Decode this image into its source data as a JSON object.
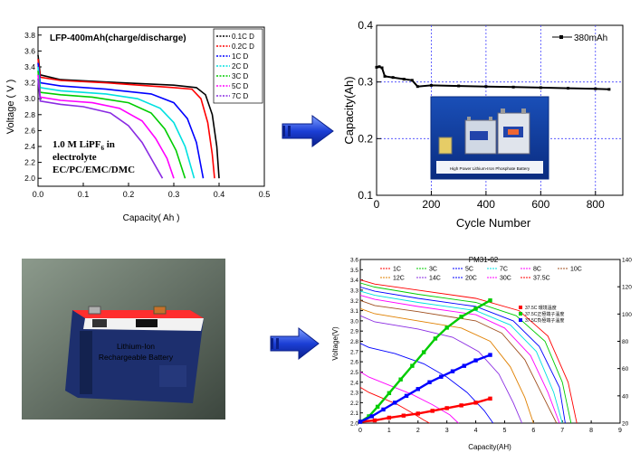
{
  "colors": {
    "black": "#000000",
    "red": "#ff0000",
    "blue": "#0000ff",
    "cyan": "#00e0e0",
    "green": "#00cc00",
    "magenta": "#ff00ff",
    "purple": "#8a2be2",
    "orange": "#e08000",
    "brown": "#a05020",
    "arrow": "#1c3fd6"
  },
  "icons": {
    "arrow_top": "right-arrow-icon",
    "arrow_bottom": "right-arrow-icon"
  },
  "photos": {
    "battery_label_1": "Lithium-Ion",
    "battery_label_2": "Rechargeable Battery",
    "inset_caption": "High Power Lithium-Iron Phosphate Battery"
  },
  "chart_data": [
    {
      "type": "line",
      "title": "LFP-400mAh(charge/discharge)",
      "xlabel": "Capacity( Ah )",
      "ylabel": "Voltage ( V )",
      "xlim": [
        0.0,
        0.5
      ],
      "ylim": [
        1.9,
        3.9
      ],
      "xticks": [
        "0.0",
        "0.1",
        "0.2",
        "0.3",
        "0.4",
        "0.5"
      ],
      "yticks": [
        "2.0",
        "2.2",
        "2.4",
        "2.6",
        "2.8",
        "3.0",
        "3.2",
        "3.4",
        "3.6",
        "3.8"
      ],
      "legend_position": "top-right",
      "annotation_lines": [
        "1.0 M LiPF",
        "6",
        " in",
        "electrolyte",
        "EC/PC/EMC/DMC"
      ],
      "series": [
        {
          "name": "0.1C D",
          "color": "black",
          "points": [
            [
              0,
              3.55
            ],
            [
              0.005,
              3.3
            ],
            [
              0.05,
              3.24
            ],
            [
              0.15,
              3.21
            ],
            [
              0.3,
              3.17
            ],
            [
              0.35,
              3.14
            ],
            [
              0.37,
              3.05
            ],
            [
              0.385,
              2.8
            ],
            [
              0.395,
              2.4
            ],
            [
              0.4,
              2.0
            ]
          ]
        },
        {
          "name": "0.2C D",
          "color": "red",
          "points": [
            [
              0,
              3.5
            ],
            [
              0.005,
              3.27
            ],
            [
              0.05,
              3.23
            ],
            [
              0.15,
              3.2
            ],
            [
              0.3,
              3.14
            ],
            [
              0.34,
              3.12
            ],
            [
              0.36,
              3.0
            ],
            [
              0.375,
              2.7
            ],
            [
              0.385,
              2.3
            ],
            [
              0.39,
              2.0
            ]
          ]
        },
        {
          "name": "1C D",
          "color": "blue",
          "points": [
            [
              0,
              3.45
            ],
            [
              0.005,
              3.2
            ],
            [
              0.05,
              3.16
            ],
            [
              0.15,
              3.12
            ],
            [
              0.25,
              3.06
            ],
            [
              0.3,
              2.95
            ],
            [
              0.33,
              2.75
            ],
            [
              0.35,
              2.45
            ],
            [
              0.365,
              2.0
            ]
          ]
        },
        {
          "name": "2C D",
          "color": "cyan",
          "points": [
            [
              0,
              3.4
            ],
            [
              0.005,
              3.14
            ],
            [
              0.05,
              3.1
            ],
            [
              0.15,
              3.06
            ],
            [
              0.22,
              3.0
            ],
            [
              0.27,
              2.88
            ],
            [
              0.3,
              2.7
            ],
            [
              0.325,
              2.4
            ],
            [
              0.345,
              2.0
            ]
          ]
        },
        {
          "name": "3C D",
          "color": "green",
          "points": [
            [
              0,
              3.35
            ],
            [
              0.005,
              3.08
            ],
            [
              0.05,
              3.05
            ],
            [
              0.12,
              3.02
            ],
            [
              0.2,
              2.95
            ],
            [
              0.25,
              2.82
            ],
            [
              0.28,
              2.62
            ],
            [
              0.305,
              2.35
            ],
            [
              0.325,
              2.0
            ]
          ]
        },
        {
          "name": "5C D",
          "color": "magenta",
          "points": [
            [
              0,
              3.3
            ],
            [
              0.005,
              3.02
            ],
            [
              0.05,
              2.98
            ],
            [
              0.12,
              2.95
            ],
            [
              0.18,
              2.88
            ],
            [
              0.23,
              2.72
            ],
            [
              0.26,
              2.5
            ],
            [
              0.285,
              2.25
            ],
            [
              0.3,
              2.0
            ]
          ]
        },
        {
          "name": "7C D",
          "color": "purple",
          "points": [
            [
              0,
              3.25
            ],
            [
              0.005,
              2.97
            ],
            [
              0.05,
              2.93
            ],
            [
              0.1,
              2.9
            ],
            [
              0.16,
              2.82
            ],
            [
              0.2,
              2.66
            ],
            [
              0.23,
              2.45
            ],
            [
              0.255,
              2.2
            ],
            [
              0.275,
              2.0
            ]
          ]
        }
      ]
    },
    {
      "type": "line",
      "title": "",
      "xlabel": "Cycle Number",
      "ylabel": "Capacity(Ah)",
      "xlim": [
        0,
        900
      ],
      "ylim": [
        0.1,
        0.4
      ],
      "xticks": [
        "0",
        "200",
        "400",
        "600",
        "800"
      ],
      "yticks": [
        "0.1",
        "0.2",
        "0.3",
        "0.4"
      ],
      "grid": true,
      "legend_position": "top-right",
      "series": [
        {
          "name": "380mAh",
          "color": "black",
          "points": [
            [
              0,
              0.326
            ],
            [
              10,
              0.327
            ],
            [
              20,
              0.325
            ],
            [
              30,
              0.31
            ],
            [
              60,
              0.308
            ],
            [
              100,
              0.305
            ],
            [
              130,
              0.303
            ],
            [
              150,
              0.292
            ],
            [
              200,
              0.294
            ],
            [
              300,
              0.293
            ],
            [
              400,
              0.292
            ],
            [
              500,
              0.291
            ],
            [
              600,
              0.29
            ],
            [
              700,
              0.289
            ],
            [
              800,
              0.288
            ],
            [
              850,
              0.287
            ]
          ]
        }
      ]
    },
    {
      "type": "line",
      "title": "PM31-02",
      "xlabel": "Capacity(AH)",
      "ylabel": "Voltage(V)",
      "xlim": [
        0,
        9
      ],
      "ylim": [
        2.0,
        3.6
      ],
      "y2lim": [
        20,
        140
      ],
      "xticks": [
        "0",
        "1",
        "2",
        "3",
        "4",
        "5",
        "6",
        "7",
        "8",
        "9"
      ],
      "yticks": [
        "2.0",
        "2.1",
        "2.2",
        "2.3",
        "2.4",
        "2.5",
        "2.6",
        "2.7",
        "2.8",
        "2.9",
        "3.0",
        "3.1",
        "3.2",
        "3.3",
        "3.4",
        "3.5",
        "3.6"
      ],
      "y2ticks": [
        "20",
        "40",
        "60",
        "80",
        "100",
        "120",
        "140"
      ],
      "legend_position": "top",
      "legend_rows": [
        [
          "1C",
          "3C",
          "5C",
          "7C",
          "8C",
          "10C"
        ],
        [
          "12C",
          "14C",
          "20C",
          "30C",
          "37.5C"
        ]
      ],
      "temp_legend": [
        "37.5C 環境溫度",
        "37.5C正極端子溫度",
        "37.5C負極端子溫度"
      ],
      "series": [
        {
          "name": "1C",
          "color": "red",
          "points": [
            [
              0,
              3.4
            ],
            [
              0.5,
              3.36
            ],
            [
              2,
              3.3
            ],
            [
              4,
              3.22
            ],
            [
              5.5,
              3.1
            ],
            [
              6.5,
              2.85
            ],
            [
              7.2,
              2.4
            ],
            [
              7.5,
              2.0
            ]
          ]
        },
        {
          "name": "3C",
          "color": "green",
          "points": [
            [
              0,
              3.37
            ],
            [
              0.5,
              3.33
            ],
            [
              2,
              3.26
            ],
            [
              4,
              3.18
            ],
            [
              5.4,
              3.05
            ],
            [
              6.4,
              2.8
            ],
            [
              7.0,
              2.4
            ],
            [
              7.3,
              2.0
            ]
          ]
        },
        {
          "name": "5C",
          "color": "blue",
          "points": [
            [
              0,
              3.33
            ],
            [
              0.5,
              3.29
            ],
            [
              2,
              3.22
            ],
            [
              4,
              3.14
            ],
            [
              5.3,
              3.0
            ],
            [
              6.2,
              2.75
            ],
            [
              6.9,
              2.35
            ],
            [
              7.1,
              2.0
            ]
          ]
        },
        {
          "name": "7C",
          "color": "cyan",
          "points": [
            [
              0,
              3.29
            ],
            [
              0.5,
              3.25
            ],
            [
              2,
              3.18
            ],
            [
              4,
              3.1
            ],
            [
              5.2,
              2.96
            ],
            [
              6.1,
              2.7
            ],
            [
              6.7,
              2.3
            ],
            [
              7.0,
              2.0
            ]
          ]
        },
        {
          "name": "8C",
          "color": "magenta",
          "points": [
            [
              0,
              3.25
            ],
            [
              0.5,
              3.21
            ],
            [
              2,
              3.14
            ],
            [
              4,
              3.06
            ],
            [
              5.0,
              2.93
            ],
            [
              5.9,
              2.66
            ],
            [
              6.5,
              2.3
            ],
            [
              6.9,
              2.0
            ]
          ]
        },
        {
          "name": "10C",
          "color": "brown",
          "points": [
            [
              0,
              3.2
            ],
            [
              0.5,
              3.15
            ],
            [
              2,
              3.09
            ],
            [
              4,
              3.0
            ],
            [
              4.9,
              2.88
            ],
            [
              5.7,
              2.62
            ],
            [
              6.3,
              2.28
            ],
            [
              6.8,
              2.0
            ]
          ]
        },
        {
          "name": "12C",
          "color": "orange",
          "points": [
            [
              0,
              3.12
            ],
            [
              0.5,
              3.07
            ],
            [
              2,
              3.0
            ],
            [
              3.5,
              2.93
            ],
            [
              4.5,
              2.8
            ],
            [
              5.2,
              2.55
            ],
            [
              5.7,
              2.25
            ],
            [
              6.0,
              2.0
            ]
          ]
        },
        {
          "name": "14C",
          "color": "purple",
          "points": [
            [
              0,
              3.05
            ],
            [
              0.5,
              2.99
            ],
            [
              2,
              2.92
            ],
            [
              3.2,
              2.84
            ],
            [
              4.1,
              2.7
            ],
            [
              4.8,
              2.48
            ],
            [
              5.3,
              2.2
            ],
            [
              5.6,
              2.0
            ]
          ]
        },
        {
          "name": "20C",
          "color": "blue",
          "points": [
            [
              0,
              2.78
            ],
            [
              0.3,
              2.74
            ],
            [
              1.2,
              2.68
            ],
            [
              2.2,
              2.58
            ],
            [
              3.0,
              2.45
            ],
            [
              3.7,
              2.3
            ],
            [
              4.3,
              2.12
            ],
            [
              4.6,
              2.0
            ]
          ]
        },
        {
          "name": "30C",
          "color": "magenta",
          "points": [
            [
              0,
              2.5
            ],
            [
              0.3,
              2.45
            ],
            [
              1,
              2.37
            ],
            [
              1.8,
              2.28
            ],
            [
              2.5,
              2.18
            ],
            [
              3.1,
              2.08
            ],
            [
              3.4,
              2.0
            ]
          ]
        },
        {
          "name": "37.5C",
          "color": "red",
          "points": [
            [
              0,
              2.35
            ],
            [
              0.3,
              2.3
            ],
            [
              0.8,
              2.24
            ],
            [
              1.3,
              2.18
            ],
            [
              1.8,
              2.1
            ],
            [
              2.2,
              2.03
            ],
            [
              2.4,
              2.0
            ]
          ]
        },
        {
          "name": "37.5C 環境溫度",
          "color": "red",
          "marker": "square",
          "axis": "y2",
          "points": [
            [
              0,
              21
            ],
            [
              0.5,
              22
            ],
            [
              1,
              24
            ],
            [
              1.5,
              25.5
            ],
            [
              2,
              27
            ],
            [
              2.5,
              29
            ],
            [
              3,
              31
            ],
            [
              3.5,
              33
            ],
            [
              4,
              35
            ],
            [
              4.5,
              38
            ]
          ]
        },
        {
          "name": "37.5C正極端子溫度",
          "color": "green",
          "marker": "square",
          "axis": "y2",
          "points": [
            [
              0,
              21
            ],
            [
              0.3,
              25
            ],
            [
              0.6,
              32
            ],
            [
              1,
              42
            ],
            [
              1.4,
              52
            ],
            [
              1.8,
              62
            ],
            [
              2.2,
              72
            ],
            [
              2.6,
              82
            ],
            [
              3,
              90
            ],
            [
              3.5,
              98
            ],
            [
              4,
              104
            ],
            [
              4.5,
              110
            ]
          ]
        },
        {
          "name": "37.5C負極端子溫度",
          "color": "blue",
          "marker": "square",
          "axis": "y2",
          "points": [
            [
              0,
              21
            ],
            [
              0.4,
              25
            ],
            [
              0.8,
              30
            ],
            [
              1.2,
              35
            ],
            [
              1.6,
              40
            ],
            [
              2,
              45
            ],
            [
              2.4,
              50
            ],
            [
              2.8,
              54
            ],
            [
              3.2,
              58
            ],
            [
              3.6,
              62
            ],
            [
              4,
              66
            ],
            [
              4.5,
              70
            ]
          ]
        }
      ]
    }
  ]
}
